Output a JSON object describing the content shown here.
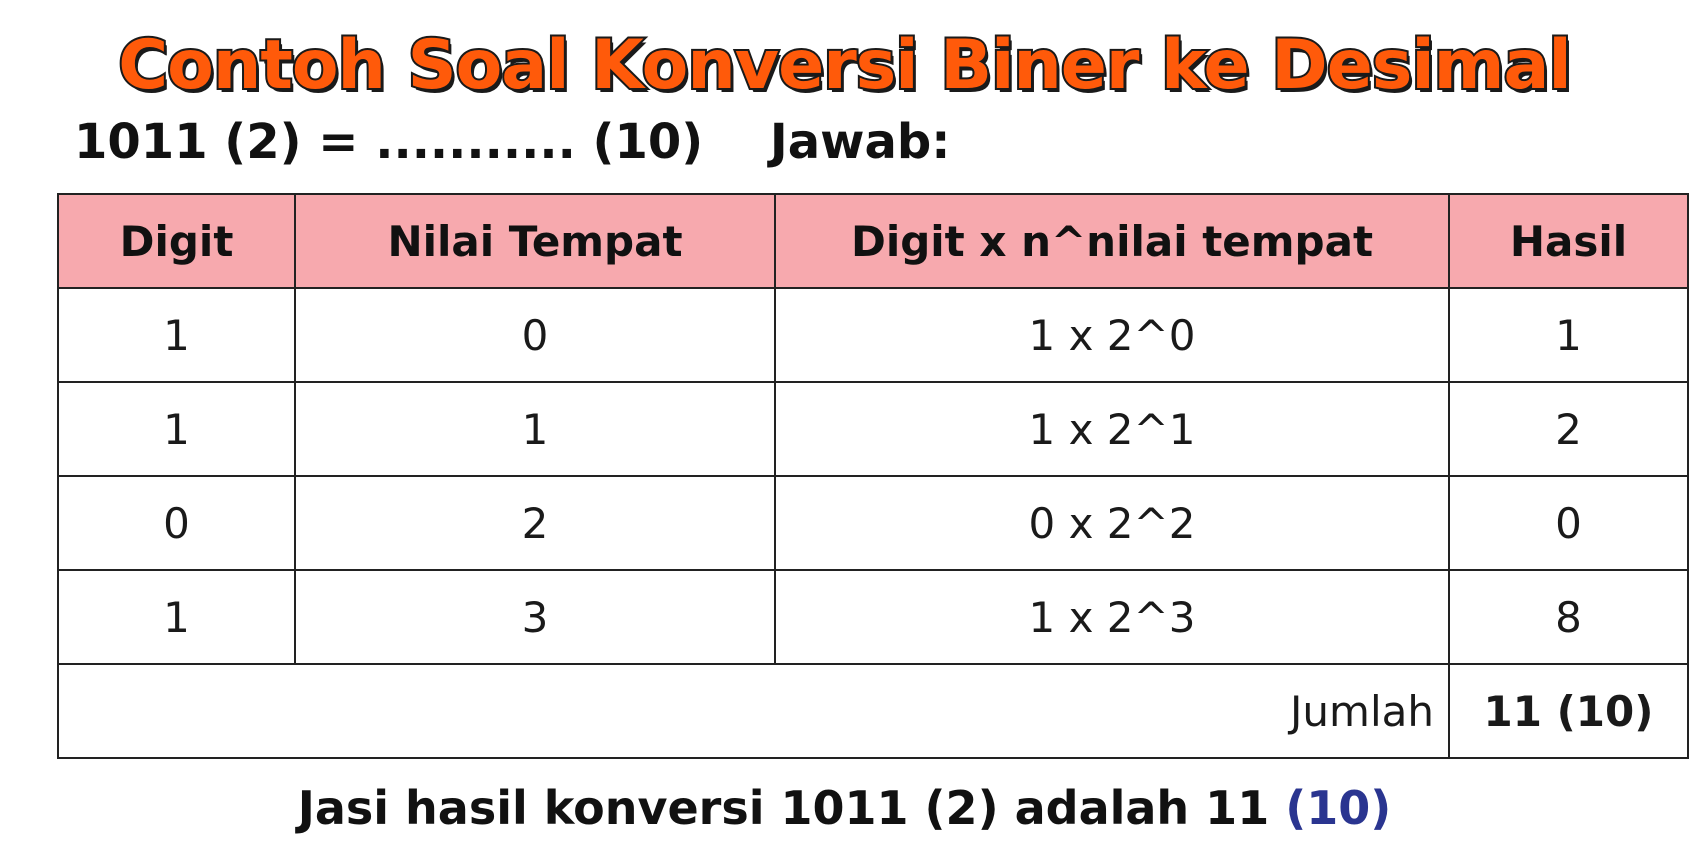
{
  "title": "Contoh Soal Konversi Biner ke Desimal",
  "question": {
    "expression": "1011 (2) = ........... (10)",
    "answer_label": "Jawab:"
  },
  "table": {
    "headers": [
      "Digit",
      "Nilai Tempat",
      "Digit x n^nilai tempat",
      "Hasil"
    ],
    "rows": [
      [
        "1",
        "0",
        "1 x 2^0",
        "1"
      ],
      [
        "1",
        "1",
        "1 x 2^1",
        "2"
      ],
      [
        "0",
        "2",
        "0 x 2^2",
        "0"
      ],
      [
        "1",
        "3",
        "1 x 2^3",
        "8"
      ]
    ],
    "total_label": "Jumlah",
    "total_value": "11 (10)"
  },
  "conclusion": {
    "text": "Jasi hasil konversi 1011 (2) adalah 11",
    "base": "(10)"
  },
  "colors": {
    "title_fill": "#ff5a0a",
    "header_background": "#f7a9ae",
    "base_highlight": "#2a3590"
  }
}
